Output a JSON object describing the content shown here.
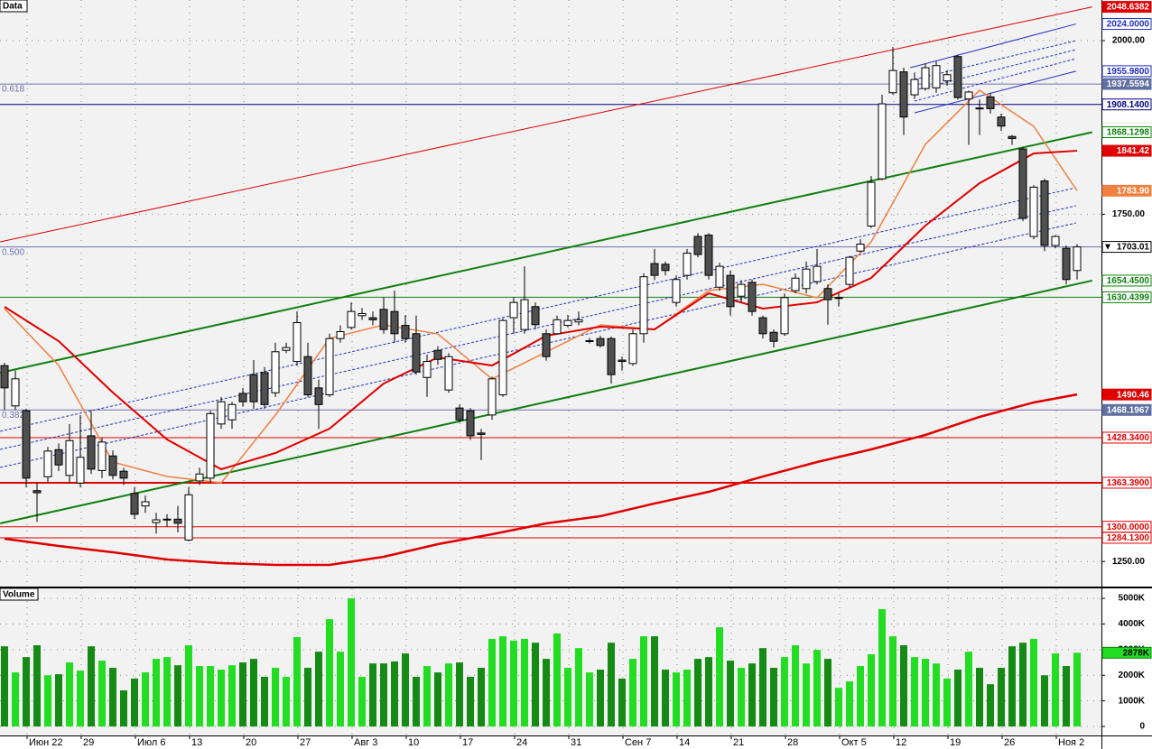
{
  "chart_data": {
    "type": "candlestick",
    "title": "Data",
    "categories": [
      null,
      null,
      null,
      "Июн 22",
      null,
      null,
      null,
      null,
      "29",
      null,
      null,
      null,
      null,
      "Июл 6",
      null,
      null,
      null,
      null,
      "13",
      null,
      null,
      null,
      null,
      "20",
      null,
      null,
      null,
      null,
      "27",
      null,
      null,
      null,
      null,
      "Авг 3",
      null,
      null,
      null,
      null,
      "10",
      null,
      null,
      null,
      null,
      "17",
      null,
      null,
      null,
      null,
      "24",
      null,
      null,
      null,
      null,
      "31",
      null,
      null,
      null,
      null,
      "Сен 7",
      null,
      null,
      null,
      null,
      "14",
      null,
      null,
      null,
      null,
      "21",
      null,
      null,
      null,
      null,
      "28",
      null,
      null,
      null,
      null,
      "Окт 5",
      null,
      null,
      null,
      null,
      "12",
      null,
      null,
      null,
      null,
      "19",
      null,
      null,
      null,
      null,
      "26",
      null,
      null,
      null,
      null,
      "Ноя 2",
      null
    ],
    "open": [
      1532,
      1474,
      1467,
      1352,
      1372,
      1411,
      1374,
      1363,
      1431,
      1381,
      1402,
      1380,
      1348,
      1330,
      1306,
      1310,
      1311,
      1281,
      1366,
      1370,
      1448,
      1454,
      1492,
      1519,
      1522,
      1493,
      1554,
      1538,
      1545,
      1500,
      1490,
      1571,
      1587,
      1604,
      1601,
      1613,
      1610,
      1590,
      1578,
      1515,
      1554,
      1497,
      1471,
      1467,
      1435,
      1461,
      1490,
      1601,
      1584,
      1617,
      1578,
      1578,
      1590,
      1595,
      1568,
      1571,
      1571,
      1540,
      1535,
      1578,
      1679,
      1678,
      1623,
      1662,
      1718,
      1720,
      1645,
      1662,
      1632,
      1652,
      1601,
      1580,
      1578,
      1640,
      1643,
      1653,
      1643,
      1629,
      1649,
      1697,
      1733,
      1801,
      1925,
      1955,
      1922,
      1931,
      1932,
      1942,
      1977,
      1916,
      1903,
      1919,
      1890,
      1862,
      1844,
      1718,
      1798,
      1705,
      1701,
      1669
    ],
    "high": [
      1536,
      1525,
      1470,
      1363,
      1415,
      1420,
      1448,
      1461,
      1467,
      1428,
      1410,
      1385,
      1357,
      1345,
      1320,
      1318,
      1330,
      1357,
      1385,
      1467,
      1487,
      1480,
      1500,
      1540,
      1530,
      1565,
      1565,
      1610,
      1565,
      1512,
      1578,
      1590,
      1623,
      1615,
      1610,
      1630,
      1640,
      1605,
      1604,
      1548,
      1560,
      1550,
      1476,
      1471,
      1441,
      1516,
      1600,
      1630,
      1675,
      1623,
      1584,
      1604,
      1605,
      1610,
      1572,
      1575,
      1574,
      1545,
      1584,
      1665,
      1700,
      1682,
      1662,
      1700,
      1723,
      1723,
      1680,
      1669,
      1655,
      1656,
      1604,
      1584,
      1636,
      1665,
      1682,
      1700,
      1649,
      1636,
      1690,
      1714,
      1805,
      1922,
      1991,
      1961,
      1954,
      1967,
      1970,
      1957,
      1980,
      1928,
      1915,
      1925,
      1895,
      1864,
      1847,
      1792,
      1801,
      1720,
      1705,
      1707
    ],
    "low": [
      1468,
      1468,
      1357,
      1307,
      1363,
      1380,
      1363,
      1357,
      1376,
      1370,
      1368,
      1360,
      1311,
      1320,
      1290,
      1300,
      1292,
      1279,
      1360,
      1363,
      1441,
      1441,
      1473,
      1470,
      1470,
      1487,
      1550,
      1532,
      1487,
      1441,
      1487,
      1565,
      1584,
      1598,
      1590,
      1578,
      1565,
      1565,
      1519,
      1487,
      1533,
      1493,
      1450,
      1425,
      1396,
      1454,
      1487,
      1578,
      1578,
      1584,
      1539,
      1578,
      1587,
      1590,
      1564,
      1558,
      1506,
      1525,
      1532,
      1565,
      1655,
      1662,
      1617,
      1656,
      1688,
      1656,
      1640,
      1604,
      1623,
      1604,
      1571,
      1558,
      1575,
      1636,
      1636,
      1649,
      1591,
      1617,
      1645,
      1695,
      1730,
      1799,
      1922,
      1864,
      1916,
      1928,
      1925,
      1935,
      1915,
      1850,
      1864,
      1895,
      1870,
      1850,
      1740,
      1714,
      1697,
      1701,
      1649,
      1656
    ],
    "close": [
      1500,
      1513,
      1370,
      1349,
      1409,
      1389,
      1424,
      1400,
      1383,
      1422,
      1374,
      1370,
      1318,
      1336,
      1310,
      1311,
      1305,
      1346,
      1376,
      1463,
      1480,
      1476,
      1480,
      1480,
      1476,
      1552,
      1558,
      1594,
      1490,
      1476,
      1571,
      1581,
      1610,
      1607,
      1598,
      1584,
      1578,
      1571,
      1523,
      1538,
      1541,
      1545,
      1454,
      1431,
      1433,
      1513,
      1597,
      1623,
      1627,
      1591,
      1545,
      1598,
      1597,
      1598,
      1568,
      1561,
      1519,
      1538,
      1578,
      1660,
      1662,
      1669,
      1656,
      1694,
      1692,
      1662,
      1675,
      1617,
      1649,
      1610,
      1578,
      1567,
      1630,
      1658,
      1671,
      1675,
      1627,
      1630,
      1688,
      1707,
      1796,
      1909,
      1957,
      1890,
      1944,
      1961,
      1964,
      1951,
      1918,
      1926,
      1902,
      1902,
      1877,
      1859,
      1744,
      1789,
      1705,
      1718,
      1656,
      1703.01
    ],
    "up_color": "#ffffff",
    "down_color": "#505050",
    "ylim": [
      1213.9,
      2058.5
    ],
    "yticks": [
      {
        "value": 2000,
        "label": "2000.00"
      },
      {
        "value": 1750,
        "label": "1750.00"
      },
      {
        "value": 1250,
        "label": "1250.00"
      }
    ],
    "grid": true,
    "moving_averages": [
      {
        "color": "#f08040",
        "width": 1.5,
        "x": [
          0,
          5,
          10,
          15,
          20,
          25,
          30,
          35,
          40,
          45,
          50,
          55,
          60,
          65,
          70,
          75,
          80,
          85,
          90,
          95,
          99
        ],
        "values": [
          1614.1,
          1532.3,
          1393.2,
          1372.4,
          1363.3,
          1460.8,
          1571.2,
          1590.7,
          1577.7,
          1512.8,
          1551.7,
          1590.7,
          1584.2,
          1640.1,
          1649.2,
          1629.7,
          1710.3,
          1850.6,
          1928.6,
          1876.6,
          1783.9
        ],
        "value_labels": [
          null,
          null,
          null,
          null,
          null,
          null,
          null,
          null,
          null,
          null,
          null,
          null,
          null,
          null,
          null,
          null,
          null,
          null,
          null,
          null,
          "1783.90"
        ]
      },
      {
        "color": "#e00000",
        "width": 2,
        "x": [
          0,
          5,
          10,
          15,
          20,
          25,
          30,
          35,
          40,
          45,
          50,
          55,
          60,
          65,
          70,
          75,
          80,
          85,
          90,
          95,
          99
        ],
        "values": [
          1616.7,
          1567.3,
          1493.3,
          1425.7,
          1382.8,
          1406.2,
          1441.3,
          1506.3,
          1543.9,
          1532.2,
          1575.1,
          1588.1,
          1584.2,
          1636.2,
          1614.1,
          1623.2,
          1658.3,
          1733.7,
          1794.7,
          1837.6,
          1841.42
        ],
        "value_labels": [
          null,
          null,
          null,
          null,
          null,
          null,
          null,
          null,
          null,
          null,
          null,
          null,
          null,
          null,
          null,
          null,
          null,
          null,
          null,
          null,
          "1841.42"
        ]
      },
      {
        "color": "#e00000",
        "width": 2.5,
        "x": [
          0,
          5,
          10,
          15,
          20,
          25,
          30,
          35,
          40,
          45,
          50,
          55,
          60,
          65,
          70,
          75,
          80,
          85,
          90,
          95,
          99
        ],
        "values": [
          1282.8,
          1272.4,
          1263.3,
          1252.9,
          1247.7,
          1245.1,
          1245.1,
          1256.8,
          1275.0,
          1289.3,
          1304.9,
          1315.2,
          1333.5,
          1350.3,
          1372.4,
          1393.2,
          1411.4,
          1432.2,
          1458.2,
          1479.0,
          1490.46
        ],
        "value_labels": [
          null,
          null,
          null,
          null,
          null,
          null,
          null,
          null,
          null,
          null,
          null,
          null,
          null,
          null,
          null,
          null,
          null,
          null,
          null,
          null,
          "1490.46"
        ]
      }
    ],
    "trendlines": [
      {
        "x": [
          -0.4,
          100.4
        ],
        "y": [
          1710.3,
          2048.6382
        ],
        "color": "#e00000",
        "width": 1,
        "labeled": true,
        "label_fill": true
      },
      {
        "x": [
          -0.4,
          100.4
        ],
        "y": [
          1521.9,
          1868.1298
        ],
        "color": "#108010",
        "width": 2,
        "labeled": true
      },
      {
        "x": [
          -0.4,
          100.4
        ],
        "y": [
          1304.9,
          1654.45
        ],
        "color": "#108010",
        "width": 2,
        "end_label": "1654.4500"
      },
      {
        "x": [
          -0.4,
          98.9
        ],
        "y": [
          1437.4,
          1788.2
        ],
        "color": "#2030c0",
        "width": 1,
        "dashed": true
      },
      {
        "x": [
          -0.4,
          98.9
        ],
        "y": [
          1411.4,
          1762.2
        ],
        "color": "#2030c0",
        "width": 1,
        "dashed": true
      },
      {
        "x": [
          -0.4,
          98.9
        ],
        "y": [
          1385.4,
          1737.5
        ],
        "color": "#2030c0",
        "width": 1,
        "dashed": true
      },
      {
        "x": [
          83.6,
          98.9
        ],
        "y": [
          1961.0,
          2024.0
        ],
        "color": "#2030c0",
        "width": 1,
        "end_label": "2024.0000"
      },
      {
        "x": [
          84.0,
          98.9
        ],
        "y": [
          1896.1,
          1955.98
        ],
        "color": "#2030c0",
        "width": 1,
        "end_label": "1955.9800"
      },
      {
        "x": [
          84.0,
          98.9
        ],
        "y": [
          1944.2,
          2000.0
        ],
        "color": "#2030c0",
        "width": 1,
        "dashed": true
      },
      {
        "x": [
          84.0,
          98.9
        ],
        "y": [
          1928.6,
          1987.0
        ],
        "color": "#2030c0",
        "width": 1,
        "dashed": true
      },
      {
        "x": [
          84.0,
          98.9
        ],
        "y": [
          1913.0,
          1974.0
        ],
        "color": "#2030c0",
        "width": 1,
        "dashed": true
      }
    ],
    "fib_levels": [
      {
        "label": "0.618",
        "value": 1937.5594,
        "axis_label": true
      },
      {
        "label": "0.500",
        "value": 1702.878
      },
      {
        "label": "0.382",
        "value": 1468.1967,
        "axis_label": true
      }
    ],
    "levels": [
      {
        "value": 1908.14,
        "label": "1908.1400",
        "color": "#000080",
        "width": 1
      },
      {
        "value": 1630.4399,
        "color": "#108010",
        "width": 1
      },
      {
        "value": 1428.34,
        "label": "1428.3400",
        "color": "#e00000",
        "width": 1
      },
      {
        "value": 1363.39,
        "label": "1363.3900",
        "color": "#e00000",
        "width": 2
      },
      {
        "value": 1300,
        "label": "1300.0000",
        "color": "#e00000",
        "width": 1
      },
      {
        "value": 1284.13,
        "label": "1284.1300",
        "color": "#e00000",
        "width": 1
      }
    ],
    "volume": {
      "title": "Volume",
      "up_color": "#22dd22",
      "down_color": "#158a15",
      "values": [
        3130000,
        2110000,
        2710000,
        3170000,
        2000000,
        2040000,
        2500000,
        2180000,
        3130000,
        2570000,
        2290000,
        1410000,
        1870000,
        2110000,
        2640000,
        2710000,
        2390000,
        3170000,
        2360000,
        2360000,
        2220000,
        2390000,
        2500000,
        2640000,
        1940000,
        2290000,
        1940000,
        3490000,
        2290000,
        2920000,
        4190000,
        2920000,
        5000000,
        1940000,
        2460000,
        2460000,
        2540000,
        2850000,
        1940000,
        2360000,
        2110000,
        2460000,
        2500000,
        1940000,
        2290000,
        3420000,
        3520000,
        3350000,
        3420000,
        3270000,
        2640000,
        3630000,
        2290000,
        3060000,
        2110000,
        2220000,
        3270000,
        1870000,
        2640000,
        3520000,
        3520000,
        2220000,
        2110000,
        2220000,
        2640000,
        2710000,
        3870000,
        2570000,
        2290000,
        2460000,
        3060000,
        2290000,
        2710000,
        3170000,
        2460000,
        2990000,
        2640000,
        1510000,
        1760000,
        2360000,
        2820000,
        4580000,
        3520000,
        3170000,
        2710000,
        2640000,
        2460000,
        1870000,
        2220000,
        2920000,
        2290000,
        1650000,
        2290000,
        3130000,
        3270000,
        3420000,
        2000000,
        2850000,
        2360000,
        2878000
      ],
      "value_labels": [
        null,
        null,
        null,
        null,
        null,
        null,
        null,
        null,
        null,
        null,
        null,
        null,
        null,
        null,
        null,
        null,
        null,
        null,
        null,
        null,
        null,
        null,
        null,
        null,
        null,
        null,
        null,
        null,
        null,
        null,
        null,
        null,
        null,
        null,
        null,
        null,
        null,
        null,
        null,
        null,
        null,
        null,
        null,
        null,
        null,
        null,
        null,
        null,
        null,
        null,
        null,
        null,
        null,
        null,
        null,
        null,
        null,
        null,
        null,
        null,
        null,
        null,
        null,
        null,
        null,
        null,
        null,
        null,
        null,
        null,
        null,
        null,
        null,
        null,
        null,
        null,
        null,
        null,
        null,
        null,
        null,
        null,
        null,
        null,
        null,
        null,
        null,
        null,
        null,
        null,
        null,
        null,
        null,
        null,
        null,
        null,
        null,
        null,
        null,
        "2878K"
      ],
      "ylim": [
        -350000,
        5390000
      ],
      "yticks": [
        {
          "value": 5000000,
          "label": "5000K"
        },
        {
          "value": 4000000,
          "label": "4000K"
        },
        {
          "value": 3000000,
          "label": "3000K"
        },
        {
          "value": 2000000,
          "label": "2000K"
        },
        {
          "value": 1000000,
          "label": "1000K"
        },
        0
      ]
    }
  }
}
